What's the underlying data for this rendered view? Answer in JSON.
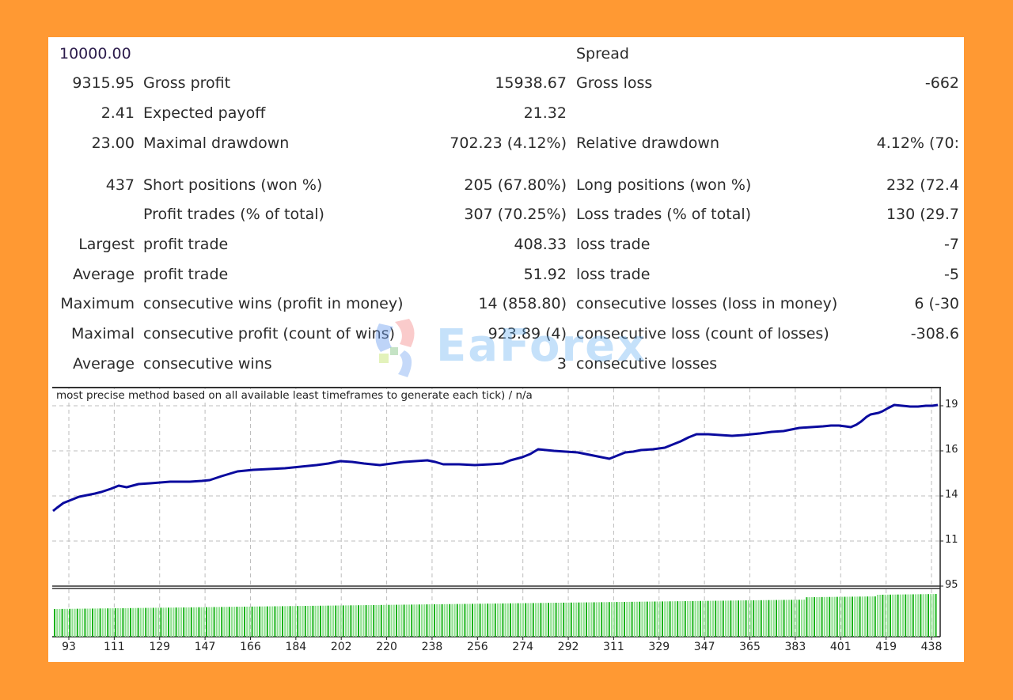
{
  "stats": {
    "rows": [
      {
        "c1": "10000.00",
        "c2": "",
        "c3": "",
        "c4": "Spread",
        "c5": ""
      },
      {
        "c1": "9315.95",
        "c2": "Gross profit",
        "c3": "15938.67",
        "c4": "Gross loss",
        "c5": "-662"
      },
      {
        "c1": "2.41",
        "c2": "Expected payoff",
        "c3": "21.32",
        "c4": "",
        "c5": ""
      },
      {
        "c1": "23.00",
        "c2": "Maximal drawdown",
        "c3": "702.23 (4.12%)",
        "c4": "Relative drawdown",
        "c5": "4.12% (70:"
      },
      {
        "c1": "437",
        "c2": "Short positions (won %)",
        "c3": "205 (67.80%)",
        "c4": "Long positions (won %)",
        "c5": "232 (72.4"
      },
      {
        "c1": "",
        "c2": "Profit trades (% of total)",
        "c3": "307 (70.25%)",
        "c4": "Loss trades (% of total)",
        "c5": "130 (29.7"
      },
      {
        "c1": "Largest",
        "c2": "profit trade",
        "c3": "408.33",
        "c4": "loss trade",
        "c5": "-7"
      },
      {
        "c1": "Average",
        "c2": "profit trade",
        "c3": "51.92",
        "c4": "loss trade",
        "c5": "-5"
      },
      {
        "c1": "Maximum",
        "c2": "consecutive wins (profit in money)",
        "c3": "14 (858.80)",
        "c4": "consecutive losses (loss in money)",
        "c5": "6 (-30"
      },
      {
        "c1": "Maximal",
        "c2": "consecutive profit (count of wins)",
        "c3": "923.89 (4)",
        "c4": "consecutive loss (count of losses)",
        "c5": "-308.6"
      },
      {
        "c1": "Average",
        "c2": "consecutive wins",
        "c3": "3",
        "c4": "consecutive losses",
        "c5": ""
      }
    ]
  },
  "watermark": {
    "text": "EaForex"
  },
  "colors": {
    "background": "#FF9933",
    "balance_line": "#0A0A9E",
    "volume_bar": "#19B319",
    "volume_bar_light": "#8FE08F",
    "grid": "#BDBDBD"
  },
  "chart_data": {
    "type": "line",
    "title": "most precise method based on all available least timeframes to generate each tick) / n/a",
    "xlabel": "",
    "ylabel": "",
    "x_tick_labels": [
      "93",
      "111",
      "129",
      "147",
      "166",
      "184",
      "202",
      "220",
      "238",
      "256",
      "274",
      "292",
      "311",
      "329",
      "347",
      "365",
      "383",
      "401",
      "419",
      "438"
    ],
    "y_tick_labels": [
      "19",
      "16",
      "14",
      "11",
      "95"
    ],
    "grid": true,
    "series": [
      {
        "name": "Balance",
        "x": [
          75,
          80,
          90,
          100,
          111,
          120,
          129,
          140,
          147,
          160,
          166,
          175,
          184,
          195,
          202,
          210,
          220,
          230,
          238,
          248,
          256,
          265,
          274,
          283,
          292,
          300,
          311,
          320,
          329,
          338,
          347,
          356,
          365,
          374,
          383,
          392,
          401,
          405,
          410,
          419,
          428,
          438
        ],
        "values": [
          13300,
          13550,
          13750,
          14000,
          14150,
          14200,
          14250,
          14550,
          14700,
          14900,
          14950,
          15050,
          15150,
          15300,
          15250,
          15200,
          15300,
          15350,
          15300,
          15200,
          15150,
          15250,
          15400,
          15700,
          15650,
          15500,
          15300,
          15550,
          15700,
          15950,
          16400,
          16500,
          16500,
          16650,
          16750,
          16900,
          16950,
          16900,
          17300,
          17600,
          17900,
          17950
        ]
      },
      {
        "name": "Volume",
        "type": "bar",
        "note": "green volume histogram, gradually increasing",
        "values_relative": [
          0.68,
          0.72,
          0.74,
          0.76,
          0.78,
          0.8,
          0.82,
          0.82,
          0.82,
          0.8,
          0.83,
          0.84,
          0.86,
          0.88,
          0.9,
          0.92
        ]
      }
    ]
  }
}
